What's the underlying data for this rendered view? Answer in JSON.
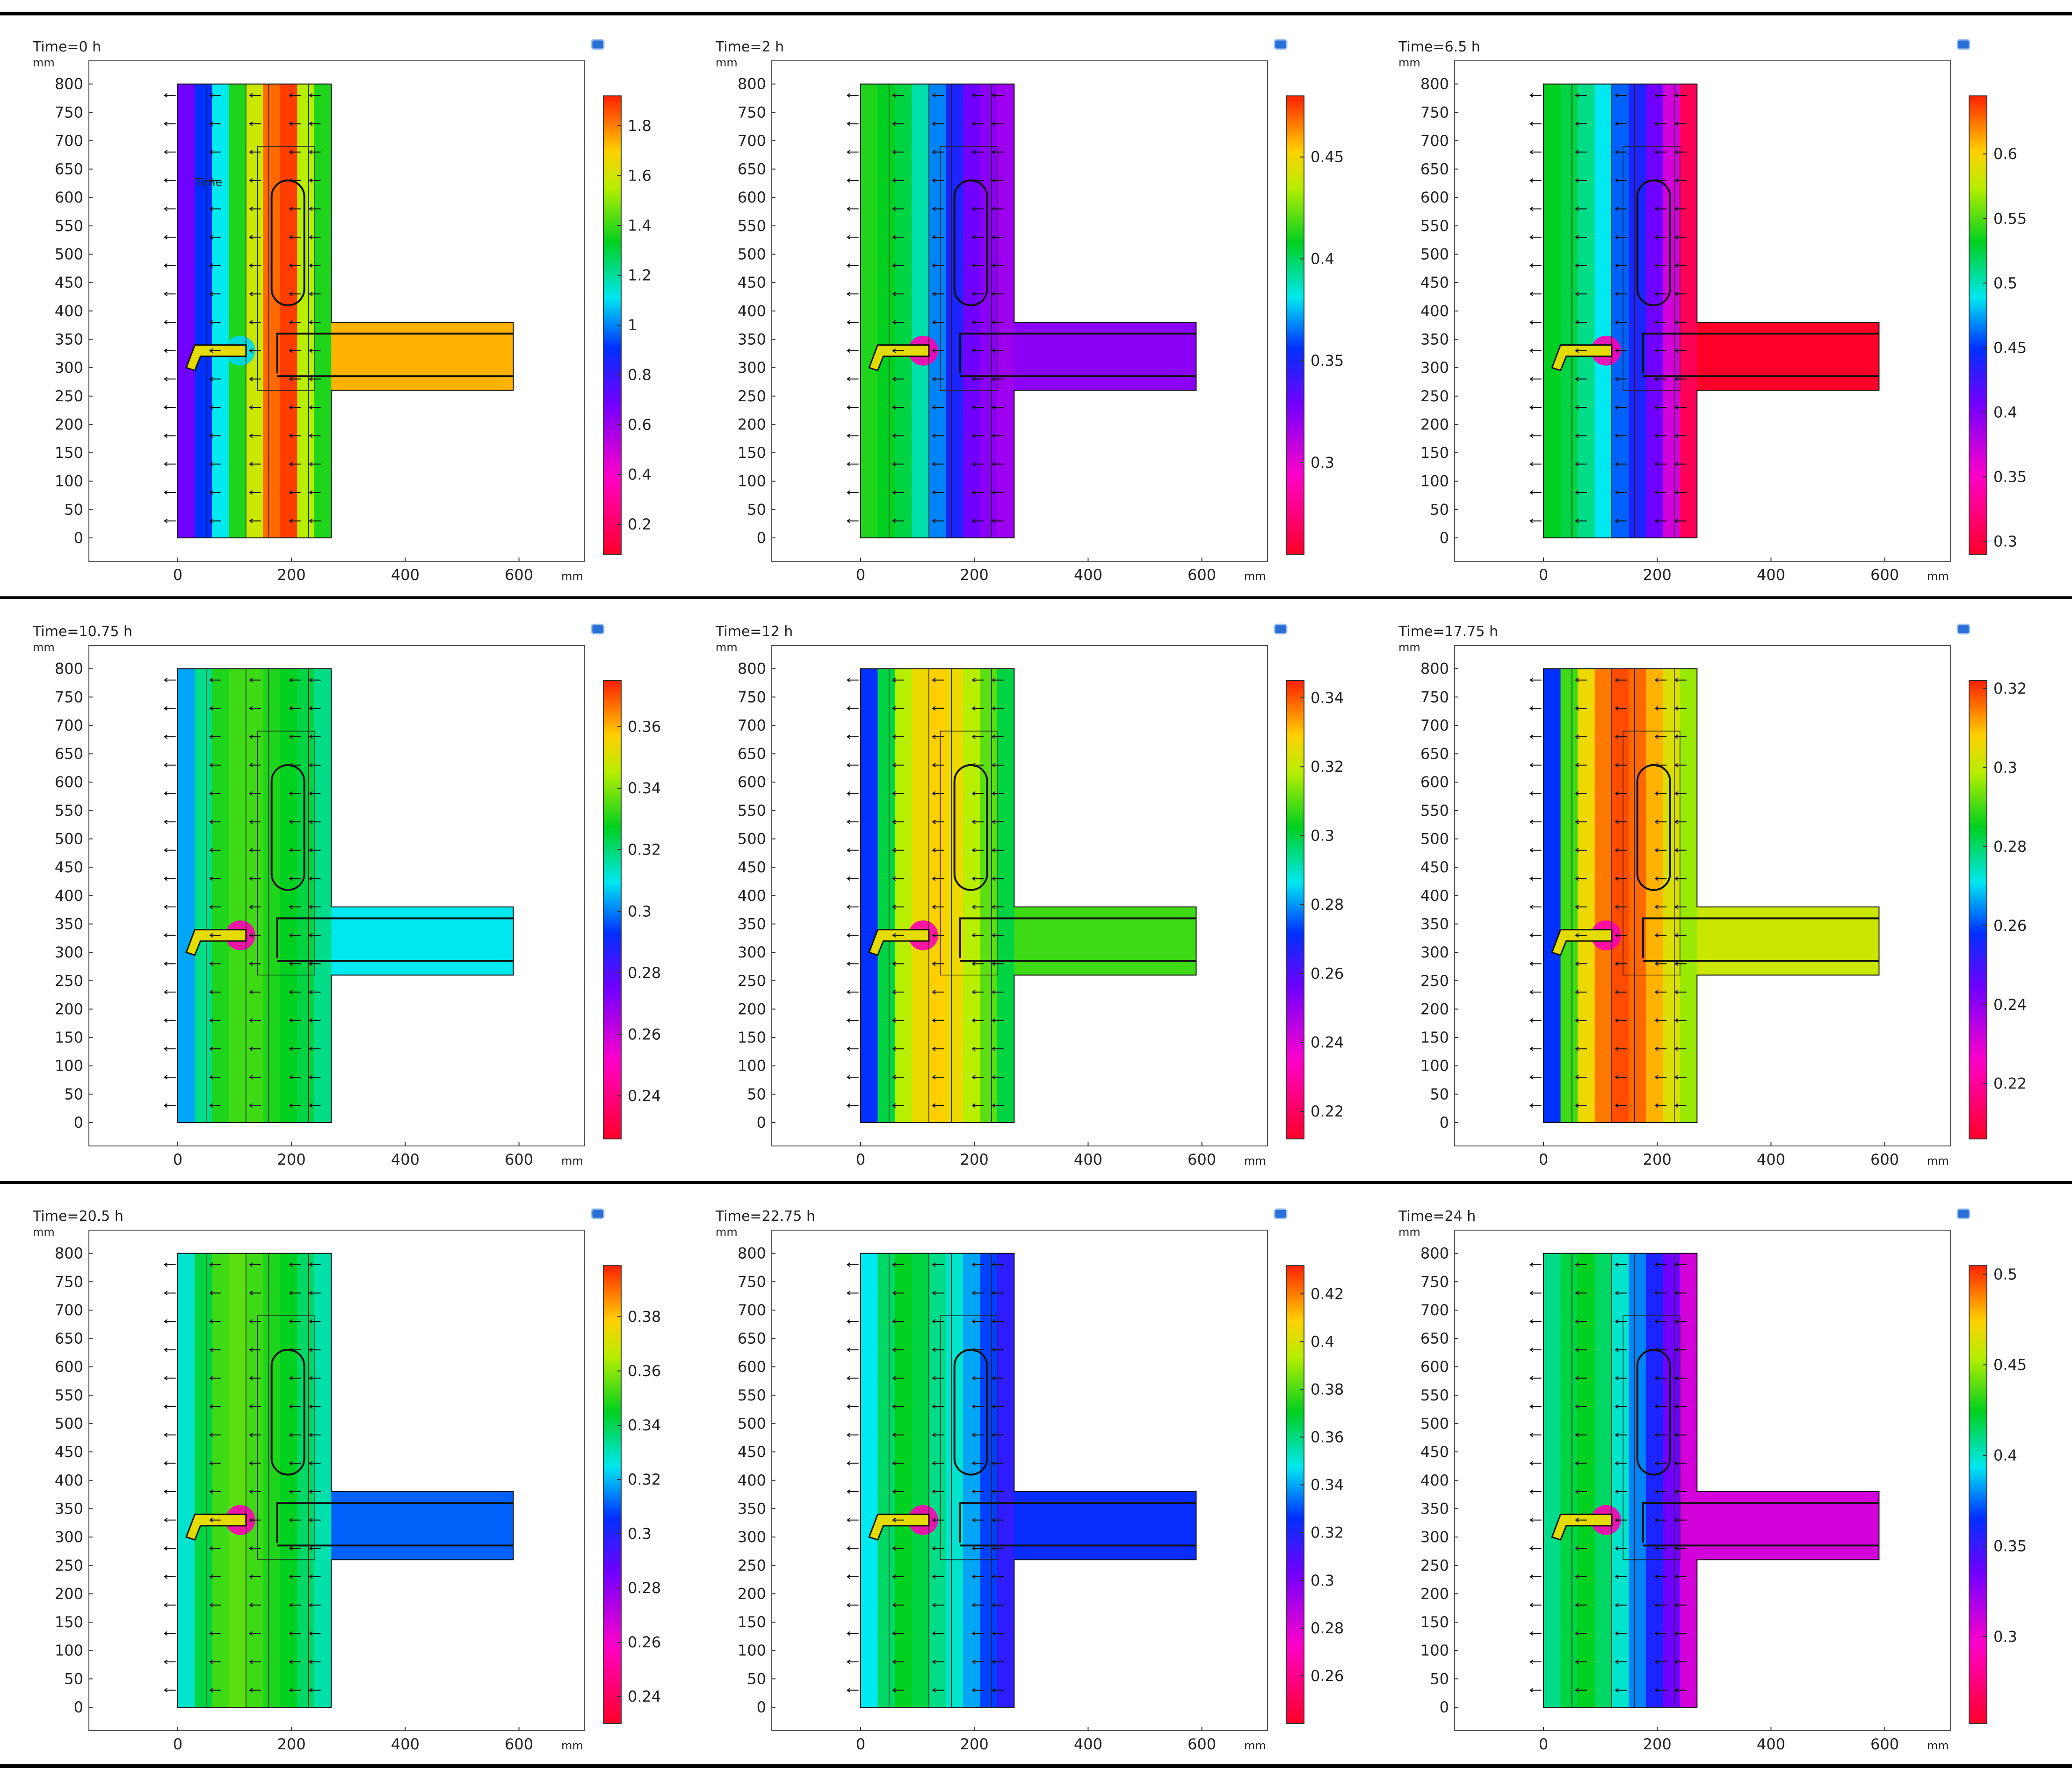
{
  "figure": {
    "units_label": "mm",
    "colormap": "rainbow (red = min, blue = mid, orange/red = max)"
  },
  "chart_data": [
    {
      "type": "heatmap",
      "title": "Time=0 h",
      "xlabel": "mm",
      "ylabel": "mm",
      "xlim": [
        -150,
        720
      ],
      "ylim": [
        -40,
        840
      ],
      "xticks": [
        0,
        200,
        400,
        600
      ],
      "yticks": [
        0,
        50,
        100,
        150,
        200,
        250,
        300,
        350,
        400,
        450,
        500,
        550,
        600,
        650,
        700,
        750,
        800
      ],
      "colorbar": {
        "min": 0.08,
        "max": 1.92,
        "ticks": [
          0.2,
          0.4,
          0.6,
          0.8,
          1,
          1.2,
          1.4,
          1.6,
          1.8
        ],
        "ticklabels": [
          "0.2",
          "0.4",
          "0.6",
          "0.8",
          "1",
          "1.2",
          "1.4",
          "1.6",
          "1.8"
        ]
      },
      "annotation": "Time"
    },
    {
      "type": "heatmap",
      "title": "Time=2 h",
      "xlabel": "mm",
      "ylabel": "mm",
      "xlim": [
        -150,
        720
      ],
      "ylim": [
        -40,
        840
      ],
      "xticks": [
        0,
        200,
        400,
        600
      ],
      "yticks": [
        0,
        50,
        100,
        150,
        200,
        250,
        300,
        350,
        400,
        450,
        500,
        550,
        600,
        650,
        700,
        750,
        800
      ],
      "colorbar": {
        "min": 0.255,
        "max": 0.48,
        "ticks": [
          0.3,
          0.35,
          0.4,
          0.45
        ],
        "ticklabels": [
          "0.3",
          "0.35",
          "0.4",
          "0.45"
        ]
      }
    },
    {
      "type": "heatmap",
      "title": "Time=6.5 h",
      "xlabel": "mm",
      "ylabel": "mm",
      "xlim": [
        -150,
        720
      ],
      "ylim": [
        -40,
        840
      ],
      "xticks": [
        0,
        200,
        400,
        600
      ],
      "yticks": [
        0,
        50,
        100,
        150,
        200,
        250,
        300,
        350,
        400,
        450,
        500,
        550,
        600,
        650,
        700,
        750,
        800
      ],
      "colorbar": {
        "min": 0.29,
        "max": 0.645,
        "ticks": [
          0.3,
          0.35,
          0.4,
          0.45,
          0.5,
          0.55,
          0.6
        ],
        "ticklabels": [
          "0.3",
          "0.35",
          "0.4",
          "0.45",
          "0.5",
          "0.55",
          "0.6"
        ]
      }
    },
    {
      "type": "heatmap",
      "title": "Time=10.75 h",
      "xlabel": "mm",
      "ylabel": "mm",
      "xlim": [
        -150,
        720
      ],
      "ylim": [
        -40,
        840
      ],
      "xticks": [
        0,
        200,
        400,
        600
      ],
      "yticks": [
        0,
        50,
        100,
        150,
        200,
        250,
        300,
        350,
        400,
        450,
        500,
        550,
        600,
        650,
        700,
        750,
        800
      ],
      "colorbar": {
        "min": 0.226,
        "max": 0.375,
        "ticks": [
          0.24,
          0.26,
          0.28,
          0.3,
          0.32,
          0.34,
          0.36
        ],
        "ticklabels": [
          "0.24",
          "0.26",
          "0.28",
          "0.3",
          "0.32",
          "0.34",
          "0.36"
        ]
      }
    },
    {
      "type": "heatmap",
      "title": "Time=12 h",
      "xlabel": "mm",
      "ylabel": "mm",
      "xlim": [
        -150,
        720
      ],
      "ylim": [
        -40,
        840
      ],
      "xticks": [
        0,
        200,
        400,
        600
      ],
      "yticks": [
        0,
        50,
        100,
        150,
        200,
        250,
        300,
        350,
        400,
        450,
        500,
        550,
        600,
        650,
        700,
        750,
        800
      ],
      "colorbar": {
        "min": 0.212,
        "max": 0.345,
        "ticks": [
          0.22,
          0.24,
          0.26,
          0.28,
          0.3,
          0.32,
          0.34
        ],
        "ticklabels": [
          "0.22",
          "0.24",
          "0.26",
          "0.28",
          "0.3",
          "0.32",
          "0.34"
        ]
      }
    },
    {
      "type": "heatmap",
      "title": "Time=17.75 h",
      "xlabel": "mm",
      "ylabel": "mm",
      "xlim": [
        -150,
        720
      ],
      "ylim": [
        -40,
        840
      ],
      "xticks": [
        0,
        200,
        400,
        600
      ],
      "yticks": [
        0,
        50,
        100,
        150,
        200,
        250,
        300,
        350,
        400,
        450,
        500,
        550,
        600,
        650,
        700,
        750,
        800
      ],
      "colorbar": {
        "min": 0.206,
        "max": 0.322,
        "ticks": [
          0.22,
          0.24,
          0.26,
          0.28,
          0.3,
          0.32
        ],
        "ticklabels": [
          "0.22",
          "0.24",
          "0.26",
          "0.28",
          "0.3",
          "0.32"
        ]
      }
    },
    {
      "type": "heatmap",
      "title": "Time=20.5 h",
      "xlabel": "mm",
      "ylabel": "mm",
      "xlim": [
        -150,
        720
      ],
      "ylim": [
        -40,
        840
      ],
      "xticks": [
        0,
        200,
        400,
        600
      ],
      "yticks": [
        0,
        50,
        100,
        150,
        200,
        250,
        300,
        350,
        400,
        450,
        500,
        550,
        600,
        650,
        700,
        750,
        800
      ],
      "colorbar": {
        "min": 0.23,
        "max": 0.399,
        "ticks": [
          0.24,
          0.26,
          0.28,
          0.3,
          0.32,
          0.34,
          0.36,
          0.38
        ],
        "ticklabels": [
          "0.24",
          "0.26",
          "0.28",
          "0.3",
          "0.32",
          "0.34",
          "0.36",
          "0.38"
        ]
      }
    },
    {
      "type": "heatmap",
      "title": "Time=22.75 h",
      "xlabel": "mm",
      "ylabel": "mm",
      "xlim": [
        -150,
        720
      ],
      "ylim": [
        -40,
        840
      ],
      "xticks": [
        0,
        200,
        400,
        600
      ],
      "yticks": [
        0,
        50,
        100,
        150,
        200,
        250,
        300,
        350,
        400,
        450,
        500,
        550,
        600,
        650,
        700,
        750,
        800
      ],
      "colorbar": {
        "min": 0.24,
        "max": 0.432,
        "ticks": [
          0.26,
          0.28,
          0.3,
          0.32,
          0.34,
          0.36,
          0.38,
          0.4,
          0.42
        ],
        "ticklabels": [
          "0.26",
          "0.28",
          "0.3",
          "0.32",
          "0.34",
          "0.36",
          "0.38",
          "0.4",
          "0.42"
        ]
      }
    },
    {
      "type": "heatmap",
      "title": "Time=24 h",
      "xlabel": "mm",
      "ylabel": "mm",
      "xlim": [
        -150,
        720
      ],
      "ylim": [
        -40,
        840
      ],
      "xticks": [
        0,
        200,
        400,
        600
      ],
      "yticks": [
        0,
        50,
        100,
        150,
        200,
        250,
        300,
        350,
        400,
        450,
        500,
        550,
        600,
        650,
        700,
        750,
        800
      ],
      "colorbar": {
        "min": 0.252,
        "max": 0.505,
        "ticks": [
          0.3,
          0.35,
          0.4,
          0.45,
          0.5
        ],
        "ticklabels": [
          "0.3",
          "0.35",
          "0.4",
          "0.45",
          "0.5"
        ]
      }
    }
  ]
}
